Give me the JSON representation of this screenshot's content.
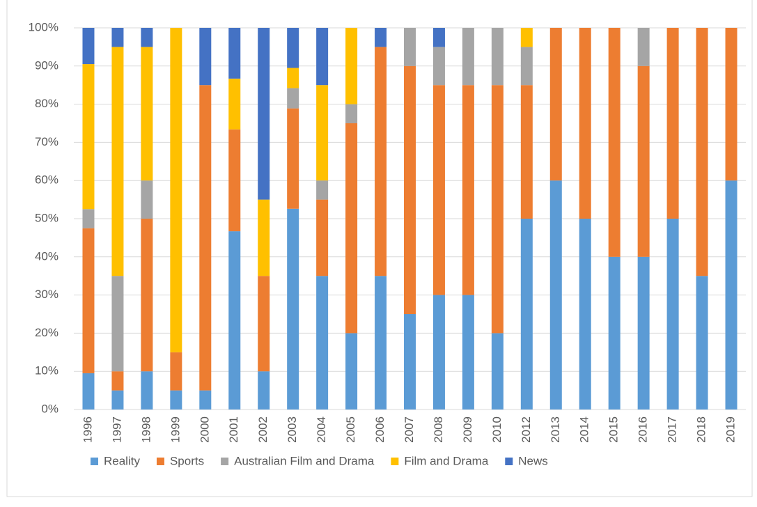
{
  "chart_data": {
    "type": "stacked_bar_percent",
    "categories": [
      "1996",
      "1997",
      "1998",
      "1999",
      "2000",
      "2001",
      "2002",
      "2003",
      "2004",
      "2005",
      "2006",
      "2007",
      "2008",
      "2009",
      "2010",
      "2012",
      "2013",
      "2014",
      "2015",
      "2016",
      "2017",
      "2018",
      "2019"
    ],
    "series": [
      {
        "name": "Reality",
        "color": "#5b9bd5",
        "values": [
          9.5,
          5,
          10,
          5,
          5,
          46.7,
          10,
          52.6,
          35,
          20,
          35,
          25,
          30,
          30,
          20,
          50,
          60,
          50,
          40,
          40,
          50,
          35,
          60
        ]
      },
      {
        "name": "Sports",
        "color": "#ed7d31",
        "values": [
          38,
          5,
          40,
          10,
          80,
          26.7,
          25,
          26.3,
          20,
          55,
          60,
          65,
          55,
          55,
          65,
          35,
          40,
          50,
          60,
          50,
          50,
          65,
          40
        ]
      },
      {
        "name": "Australian Film and Drama",
        "color": "#a5a5a5",
        "values": [
          5,
          25,
          10,
          0,
          0,
          0,
          0,
          5.3,
          5,
          5,
          0,
          10,
          10,
          15,
          15,
          10,
          0,
          0,
          0,
          10,
          0,
          0,
          0
        ]
      },
      {
        "name": "Film and Drama",
        "color": "#ffc000",
        "values": [
          38,
          60,
          35,
          85,
          0,
          13.3,
          20,
          5.3,
          25,
          20,
          0,
          0,
          0,
          0,
          0,
          5,
          0,
          0,
          0,
          0,
          0,
          0,
          0
        ]
      },
      {
        "name": "News",
        "color": "#4472c4",
        "values": [
          9.5,
          5,
          5,
          0,
          15,
          13.3,
          45,
          10.5,
          15,
          0,
          5,
          0,
          5,
          0,
          0,
          0,
          0,
          0,
          0,
          0,
          0,
          0,
          0
        ]
      }
    ],
    "ylim": [
      0,
      100
    ],
    "yticks": [
      {
        "value": 0,
        "label": "0%"
      },
      {
        "value": 10,
        "label": "10%"
      },
      {
        "value": 20,
        "label": "20%"
      },
      {
        "value": 30,
        "label": "30%"
      },
      {
        "value": 40,
        "label": "40%"
      },
      {
        "value": 50,
        "label": "50%"
      },
      {
        "value": 60,
        "label": "60%"
      },
      {
        "value": 70,
        "label": "70%"
      },
      {
        "value": 80,
        "label": "80%"
      },
      {
        "value": 90,
        "label": "90%"
      },
      {
        "value": 100,
        "label": "100%"
      }
    ],
    "grid": true,
    "legend": "bottom"
  }
}
